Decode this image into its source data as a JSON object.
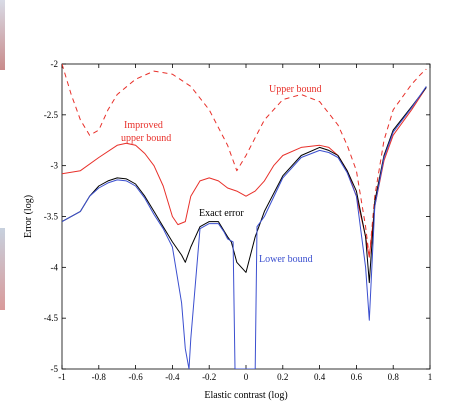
{
  "chart_data": {
    "type": "line",
    "title": "",
    "xlabel": "Elastic contrast (log)",
    "ylabel": "Error (log)",
    "xlim": [
      -1,
      1
    ],
    "ylim": [
      -5,
      -2
    ],
    "x_ticks": [
      -1,
      -0.8,
      -0.6,
      -0.4,
      -0.2,
      0,
      0.2,
      0.4,
      0.6,
      0.8,
      1
    ],
    "x_tick_labels": [
      "-1",
      "-0.8",
      "-0.6",
      "-0.4",
      "-0.2",
      "0",
      "0.2",
      "0.4",
      "0.6",
      "0.8",
      "1"
    ],
    "y_ticks": [
      -2,
      -2.5,
      -3,
      -3.5,
      -4,
      -4.5,
      -5
    ],
    "y_tick_labels": [
      "-2",
      "-2.5",
      "-3",
      "-3.5",
      "-4",
      "-4.5",
      "-5"
    ],
    "grid": false,
    "legend": "none",
    "annotations": [
      {
        "text": "Upper bound",
        "series": "upper_bound"
      },
      {
        "text": "Improved",
        "series": "improved_upper_bound"
      },
      {
        "text": "upper bound",
        "series": "improved_upper_bound"
      },
      {
        "text": "Exact error",
        "series": "exact_error"
      },
      {
        "text": "Lower bound",
        "series": "lower_bound"
      }
    ],
    "series": [
      {
        "key": "upper_bound",
        "color": "#e8302a",
        "style": "dashed",
        "x": [
          -1,
          -0.95,
          -0.9,
          -0.85,
          -0.8,
          -0.75,
          -0.7,
          -0.6,
          -0.5,
          -0.4,
          -0.3,
          -0.2,
          -0.1,
          -0.05,
          0,
          0.1,
          0.2,
          0.3,
          0.4,
          0.5,
          0.55,
          0.6,
          0.65,
          0.67,
          0.7,
          0.75,
          0.8,
          0.9,
          0.95,
          0.98
        ],
        "values": [
          -2.0,
          -2.3,
          -2.55,
          -2.7,
          -2.65,
          -2.45,
          -2.3,
          -2.15,
          -2.07,
          -2.1,
          -2.22,
          -2.45,
          -2.8,
          -3.05,
          -2.9,
          -2.55,
          -2.35,
          -2.3,
          -2.37,
          -2.6,
          -2.8,
          -3.05,
          -3.6,
          -3.9,
          -3.3,
          -2.75,
          -2.45,
          -2.2,
          -2.1,
          -2.05
        ]
      },
      {
        "key": "improved_upper_bound",
        "color": "#e8302a",
        "style": "solid",
        "x": [
          -1,
          -0.9,
          -0.8,
          -0.7,
          -0.65,
          -0.6,
          -0.55,
          -0.5,
          -0.45,
          -0.4,
          -0.37,
          -0.33,
          -0.3,
          -0.25,
          -0.2,
          -0.15,
          -0.1,
          -0.05,
          0,
          0.05,
          0.1,
          0.15,
          0.2,
          0.3,
          0.4,
          0.45,
          0.5,
          0.55,
          0.6,
          0.65,
          0.67,
          0.7,
          0.75,
          0.8,
          0.9,
          0.98
        ],
        "values": [
          -3.08,
          -3.05,
          -2.92,
          -2.8,
          -2.78,
          -2.8,
          -2.88,
          -3.0,
          -3.2,
          -3.5,
          -3.58,
          -3.55,
          -3.3,
          -3.15,
          -3.12,
          -3.15,
          -3.22,
          -3.25,
          -3.3,
          -3.25,
          -3.15,
          -3.0,
          -2.9,
          -2.82,
          -2.8,
          -2.82,
          -2.9,
          -3.05,
          -3.3,
          -3.7,
          -3.9,
          -3.4,
          -2.95,
          -2.7,
          -2.45,
          -2.23
        ]
      },
      {
        "key": "exact_error",
        "color": "#000000",
        "style": "solid",
        "x": [
          -1,
          -0.9,
          -0.85,
          -0.8,
          -0.75,
          -0.7,
          -0.65,
          -0.6,
          -0.55,
          -0.5,
          -0.45,
          -0.4,
          -0.35,
          -0.33,
          -0.3,
          -0.25,
          -0.2,
          -0.15,
          -0.1,
          -0.08,
          -0.05,
          0,
          0.05,
          0.1,
          0.2,
          0.3,
          0.4,
          0.45,
          0.5,
          0.55,
          0.6,
          0.65,
          0.67,
          0.7,
          0.75,
          0.8,
          0.9,
          0.98
        ],
        "values": [
          -3.55,
          -3.45,
          -3.3,
          -3.2,
          -3.15,
          -3.12,
          -3.13,
          -3.18,
          -3.3,
          -3.45,
          -3.6,
          -3.75,
          -3.88,
          -3.95,
          -3.8,
          -3.6,
          -3.55,
          -3.55,
          -3.7,
          -3.75,
          -3.95,
          -4.05,
          -3.7,
          -3.45,
          -3.1,
          -2.9,
          -2.82,
          -2.85,
          -2.9,
          -3.05,
          -3.25,
          -3.7,
          -4.15,
          -3.35,
          -2.9,
          -2.65,
          -2.42,
          -2.23
        ]
      },
      {
        "key": "lower_bound",
        "color": "#3b4fcf",
        "style": "solid",
        "x": [
          -1,
          -0.9,
          -0.85,
          -0.8,
          -0.75,
          -0.7,
          -0.65,
          -0.6,
          -0.55,
          -0.5,
          -0.45,
          -0.4,
          -0.35,
          -0.33,
          -0.31,
          -0.3,
          -0.25,
          -0.2,
          -0.15,
          -0.12,
          -0.1,
          -0.07,
          -0.06,
          -0.05,
          0.05,
          0.06,
          0.1,
          0.2,
          0.3,
          0.4,
          0.45,
          0.5,
          0.55,
          0.6,
          0.65,
          0.67,
          0.7,
          0.75,
          0.8,
          0.9,
          0.98
        ],
        "values": [
          -3.55,
          -3.45,
          -3.3,
          -3.22,
          -3.17,
          -3.14,
          -3.15,
          -3.2,
          -3.32,
          -3.48,
          -3.62,
          -3.8,
          -4.35,
          -4.8,
          -5.0,
          -4.7,
          -3.62,
          -3.57,
          -3.57,
          -3.65,
          -3.72,
          -3.75,
          -5.0,
          -5.0,
          -5.0,
          -3.6,
          -3.5,
          -3.12,
          -2.92,
          -2.85,
          -2.87,
          -2.92,
          -3.07,
          -3.3,
          -4.0,
          -4.52,
          -3.4,
          -2.92,
          -2.67,
          -2.43,
          -2.22
        ]
      }
    ]
  }
}
